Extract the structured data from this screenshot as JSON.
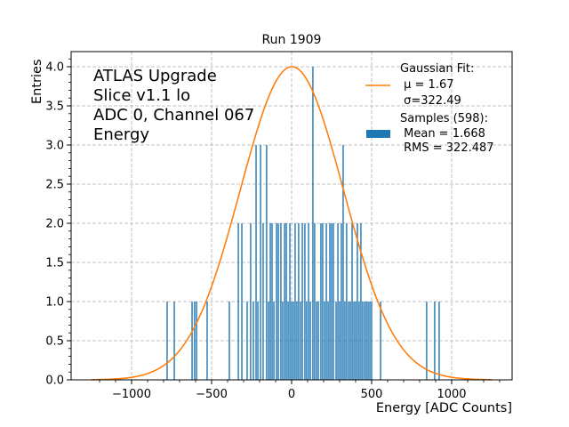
{
  "chart_data": {
    "type": "bar",
    "title": "Run 1909",
    "xlabel": "Energy [ADC Counts]",
    "ylabel": "Entries",
    "xlim": [
      -1250,
      1370
    ],
    "ylim": [
      0,
      4.2
    ],
    "grid": true,
    "xticks": [
      -1000,
      -500,
      0,
      500,
      1000
    ],
    "xtick_labels": [
      "−1000",
      "−500",
      "0",
      "500",
      "1000"
    ],
    "yticks": [
      0.0,
      0.5,
      1.0,
      1.5,
      2.0,
      2.5,
      3.0,
      3.5,
      4.0
    ],
    "ytick_labels": [
      "0.0",
      "0.5",
      "1.0",
      "1.5",
      "2.0",
      "2.5",
      "3.0",
      "3.5",
      "4.0"
    ],
    "annotation": [
      "ATLAS Upgrade",
      "Slice v1.1 lo",
      "ADC 0, Channel 067",
      "Energy"
    ],
    "legend": {
      "position": "top-right",
      "entries": [
        {
          "type": "line",
          "color": "#ff7f0e",
          "lines": [
            "Gaussian Fit:",
            " μ = 1.67",
            " σ=322.49"
          ]
        },
        {
          "type": "patch",
          "color": "#1f77b4",
          "lines": [
            "Samples (598):",
            " Mean = 1.668",
            " RMS = 322.487"
          ]
        }
      ]
    },
    "fit": {
      "name": "Gaussian Fit",
      "mu": 1.67,
      "sigma": 322.49,
      "amplitude": 4.0,
      "x_range": [
        -1250,
        1250
      ],
      "color": "#ff7f0e"
    },
    "histogram": {
      "name": "Samples",
      "count": 598,
      "mean": 1.668,
      "rms": 322.487,
      "color": "#1f77b4",
      "bins": [
        {
          "x": -778,
          "count": 1
        },
        {
          "x": -733,
          "count": 1
        },
        {
          "x": -622,
          "count": 1
        },
        {
          "x": -606,
          "count": 1
        },
        {
          "x": -594,
          "count": 1
        },
        {
          "x": -528,
          "count": 1
        },
        {
          "x": -389,
          "count": 1
        },
        {
          "x": -333,
          "count": 2
        },
        {
          "x": -311,
          "count": 2
        },
        {
          "x": -278,
          "count": 1
        },
        {
          "x": -256,
          "count": 2
        },
        {
          "x": -239,
          "count": 1
        },
        {
          "x": -222,
          "count": 3
        },
        {
          "x": -211,
          "count": 1
        },
        {
          "x": -194,
          "count": 3
        },
        {
          "x": -178,
          "count": 2
        },
        {
          "x": -156,
          "count": 3
        },
        {
          "x": -144,
          "count": 1
        },
        {
          "x": -133,
          "count": 2
        },
        {
          "x": -122,
          "count": 2
        },
        {
          "x": -111,
          "count": 1
        },
        {
          "x": -94,
          "count": 2
        },
        {
          "x": -83,
          "count": 2
        },
        {
          "x": -67,
          "count": 2
        },
        {
          "x": -56,
          "count": 1
        },
        {
          "x": -44,
          "count": 2
        },
        {
          "x": -33,
          "count": 2
        },
        {
          "x": -22,
          "count": 1
        },
        {
          "x": -11,
          "count": 2
        },
        {
          "x": 0,
          "count": 1
        },
        {
          "x": 11,
          "count": 1
        },
        {
          "x": 22,
          "count": 2
        },
        {
          "x": 33,
          "count": 1
        },
        {
          "x": 44,
          "count": 2
        },
        {
          "x": 56,
          "count": 1
        },
        {
          "x": 67,
          "count": 2
        },
        {
          "x": 83,
          "count": 2
        },
        {
          "x": 94,
          "count": 1
        },
        {
          "x": 106,
          "count": 2
        },
        {
          "x": 117,
          "count": 1
        },
        {
          "x": 133,
          "count": 4
        },
        {
          "x": 144,
          "count": 2
        },
        {
          "x": 156,
          "count": 1
        },
        {
          "x": 167,
          "count": 1
        },
        {
          "x": 183,
          "count": 2
        },
        {
          "x": 194,
          "count": 2
        },
        {
          "x": 206,
          "count": 1
        },
        {
          "x": 217,
          "count": 2
        },
        {
          "x": 228,
          "count": 1
        },
        {
          "x": 239,
          "count": 2
        },
        {
          "x": 250,
          "count": 2
        },
        {
          "x": 261,
          "count": 2
        },
        {
          "x": 278,
          "count": 1
        },
        {
          "x": 289,
          "count": 2
        },
        {
          "x": 300,
          "count": 1
        },
        {
          "x": 311,
          "count": 2
        },
        {
          "x": 322,
          "count": 3
        },
        {
          "x": 333,
          "count": 1
        },
        {
          "x": 344,
          "count": 2
        },
        {
          "x": 356,
          "count": 1
        },
        {
          "x": 367,
          "count": 1
        },
        {
          "x": 378,
          "count": 2
        },
        {
          "x": 389,
          "count": 1
        },
        {
          "x": 400,
          "count": 1
        },
        {
          "x": 411,
          "count": 2
        },
        {
          "x": 422,
          "count": 1
        },
        {
          "x": 433,
          "count": 2
        },
        {
          "x": 444,
          "count": 1
        },
        {
          "x": 456,
          "count": 1
        },
        {
          "x": 467,
          "count": 1
        },
        {
          "x": 478,
          "count": 1
        },
        {
          "x": 489,
          "count": 1
        },
        {
          "x": 500,
          "count": 1
        },
        {
          "x": 556,
          "count": 1
        },
        {
          "x": 844,
          "count": 1
        },
        {
          "x": 894,
          "count": 1
        },
        {
          "x": 922,
          "count": 1
        }
      ]
    }
  }
}
